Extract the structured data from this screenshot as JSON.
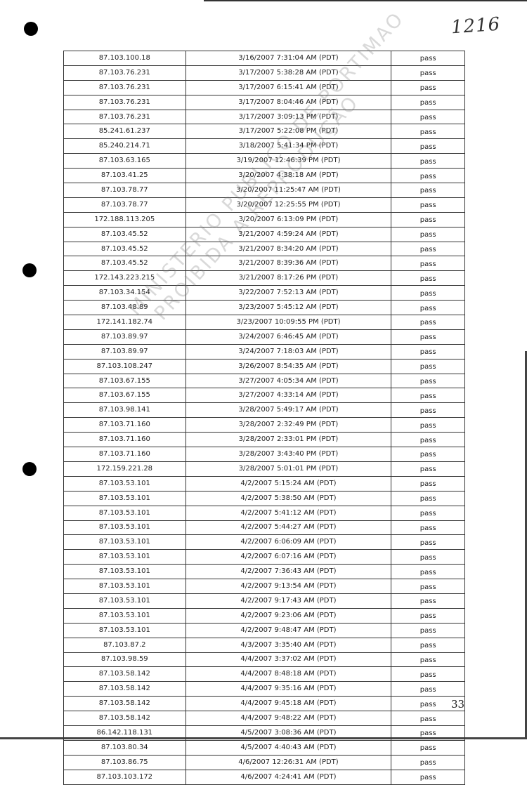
{
  "handwritten_note": "1216",
  "page_number": "33",
  "watermark": {
    "line1": "MINISTERIO PUBLICO DE PORTIMAO",
    "line2": "PROIBIDA A REPRODUÇÃO"
  },
  "rows": [
    {
      "ip": "87.103.100.18",
      "datetime": "3/16/2007 7:31:04 AM (PDT)",
      "status": "pass"
    },
    {
      "ip": "87.103.76.231",
      "datetime": "3/17/2007 5:38:28 AM (PDT)",
      "status": "pass"
    },
    {
      "ip": "87.103.76.231",
      "datetime": "3/17/2007 6:15:41 AM (PDT)",
      "status": "pass"
    },
    {
      "ip": "87.103.76.231",
      "datetime": "3/17/2007 8:04:46 AM (PDT)",
      "status": "pass"
    },
    {
      "ip": "87.103.76.231",
      "datetime": "3/17/2007 3:09:13 PM (PDT)",
      "status": "pass"
    },
    {
      "ip": "85.241.61.237",
      "datetime": "3/17/2007 5:22:08 PM (PDT)",
      "status": "pass"
    },
    {
      "ip": "85.240.214.71",
      "datetime": "3/18/2007 5:41:34 PM (PDT)",
      "status": "pass"
    },
    {
      "ip": "87.103.63.165",
      "datetime": "3/19/2007 12:46:39 PM (PDT)",
      "status": "pass"
    },
    {
      "ip": "87.103.41.25",
      "datetime": "3/20/2007 4:38:18 AM (PDT)",
      "status": "pass"
    },
    {
      "ip": "87.103.78.77",
      "datetime": "3/20/2007 11:25:47 AM (PDT)",
      "status": "pass"
    },
    {
      "ip": "87.103.78.77",
      "datetime": "3/20/2007 12:25:55 PM (PDT)",
      "status": "pass"
    },
    {
      "ip": "172.188.113.205",
      "datetime": "3/20/2007 6:13:09 PM (PDT)",
      "status": "pass"
    },
    {
      "ip": "87.103.45.52",
      "datetime": "3/21/2007 4:59:24 AM (PDT)",
      "status": "pass"
    },
    {
      "ip": "87.103.45.52",
      "datetime": "3/21/2007 8:34:20 AM (PDT)",
      "status": "pass"
    },
    {
      "ip": "87.103.45.52",
      "datetime": "3/21/2007 8:39:36 AM (PDT)",
      "status": "pass"
    },
    {
      "ip": "172.143.223.215",
      "datetime": "3/21/2007 8:17:26 PM (PDT)",
      "status": "pass"
    },
    {
      "ip": "87.103.34.154",
      "datetime": "3/22/2007 7:52:13 AM (PDT)",
      "status": "pass"
    },
    {
      "ip": "87.103.48.89",
      "datetime": "3/23/2007 5:45:12 AM (PDT)",
      "status": "pass"
    },
    {
      "ip": "172.141.182.74",
      "datetime": "3/23/2007 10:09:55 PM (PDT)",
      "status": "pass"
    },
    {
      "ip": "87.103.89.97",
      "datetime": "3/24/2007 6:46:45 AM (PDT)",
      "status": "pass"
    },
    {
      "ip": "87.103.89.97",
      "datetime": "3/24/2007 7:18:03 AM (PDT)",
      "status": "pass"
    },
    {
      "ip": "87.103.108.247",
      "datetime": "3/26/2007 8:54:35 AM (PDT)",
      "status": "pass"
    },
    {
      "ip": "87.103.67.155",
      "datetime": "3/27/2007 4:05:34 AM (PDT)",
      "status": "pass"
    },
    {
      "ip": "87.103.67.155",
      "datetime": "3/27/2007 4:33:14 AM (PDT)",
      "status": "pass"
    },
    {
      "ip": "87.103.98.141",
      "datetime": "3/28/2007 5:49:17 AM (PDT)",
      "status": "pass"
    },
    {
      "ip": "87.103.71.160",
      "datetime": "3/28/2007 2:32:49 PM (PDT)",
      "status": "pass"
    },
    {
      "ip": "87.103.71.160",
      "datetime": "3/28/2007 2:33:01 PM (PDT)",
      "status": "pass"
    },
    {
      "ip": "87.103.71.160",
      "datetime": "3/28/2007 3:43:40 PM (PDT)",
      "status": "pass"
    },
    {
      "ip": "172.159.221.28",
      "datetime": "3/28/2007 5:01:01 PM (PDT)",
      "status": "pass"
    },
    {
      "ip": "87.103.53.101",
      "datetime": "4/2/2007 5:15:24 AM (PDT)",
      "status": "pass"
    },
    {
      "ip": "87.103.53.101",
      "datetime": "4/2/2007 5:38:50 AM (PDT)",
      "status": "pass"
    },
    {
      "ip": "87.103.53.101",
      "datetime": "4/2/2007 5:41:12 AM (PDT)",
      "status": "pass"
    },
    {
      "ip": "87.103.53.101",
      "datetime": "4/2/2007 5:44:27 AM (PDT)",
      "status": "pass"
    },
    {
      "ip": "87.103.53.101",
      "datetime": "4/2/2007 6:06:09 AM (PDT)",
      "status": "pass"
    },
    {
      "ip": "87.103.53.101",
      "datetime": "4/2/2007 6:07:16 AM (PDT)",
      "status": "pass"
    },
    {
      "ip": "87.103.53.101",
      "datetime": "4/2/2007 7:36:43 AM (PDT)",
      "status": "pass"
    },
    {
      "ip": "87.103.53.101",
      "datetime": "4/2/2007 9:13:54 AM (PDT)",
      "status": "pass"
    },
    {
      "ip": "87.103.53.101",
      "datetime": "4/2/2007 9:17:43 AM (PDT)",
      "status": "pass"
    },
    {
      "ip": "87.103.53.101",
      "datetime": "4/2/2007 9:23:06 AM (PDT)",
      "status": "pass"
    },
    {
      "ip": "87.103.53.101",
      "datetime": "4/2/2007 9:48:47 AM (PDT)",
      "status": "pass"
    },
    {
      "ip": "87.103.87.2",
      "datetime": "4/3/2007 3:35:40 AM (PDT)",
      "status": "pass"
    },
    {
      "ip": "87.103.98.59",
      "datetime": "4/4/2007 3:37:02 AM (PDT)",
      "status": "pass"
    },
    {
      "ip": "87.103.58.142",
      "datetime": "4/4/2007 8:48:18 AM (PDT)",
      "status": "pass"
    },
    {
      "ip": "87.103.58.142",
      "datetime": "4/4/2007 9:35:16 AM (PDT)",
      "status": "pass"
    },
    {
      "ip": "87.103.58.142",
      "datetime": "4/4/2007 9:45:18 AM (PDT)",
      "status": "pass"
    },
    {
      "ip": "87.103.58.142",
      "datetime": "4/4/2007 9:48:22 AM (PDT)",
      "status": "pass"
    },
    {
      "ip": "86.142.118.131",
      "datetime": "4/5/2007 3:08:36 AM (PDT)",
      "status": "pass"
    },
    {
      "ip": "87.103.80.34",
      "datetime": "4/5/2007 4:40:43 AM (PDT)",
      "status": "pass"
    },
    {
      "ip": "87.103.86.75",
      "datetime": "4/6/2007 12:26:31 AM (PDT)",
      "status": "pass"
    },
    {
      "ip": "87.103.103.172",
      "datetime": "4/6/2007 4:24:41 AM (PDT)",
      "status": "pass"
    }
  ]
}
